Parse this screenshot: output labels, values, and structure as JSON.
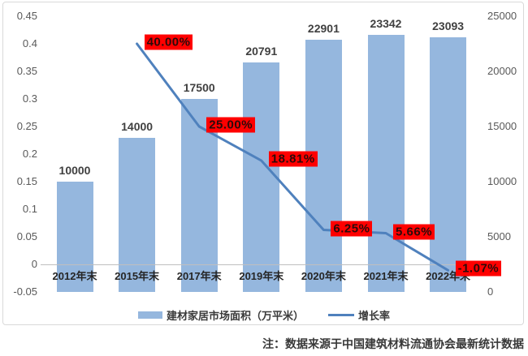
{
  "note": "注：数据来源于中国建筑材料流通协会最新统计数据",
  "chart_data": {
    "type": "combo",
    "title": "",
    "categories": [
      "2012年末",
      "2015年末",
      "2017年末",
      "2019年末",
      "2020年末",
      "2021年末",
      "2022年末"
    ],
    "series": [
      {
        "name": "建材家居市场面积（万平米）",
        "type": "bar",
        "axis": "right",
        "color": "#95B7DE",
        "values": [
          10000,
          14000,
          17500,
          20791,
          22901,
          23342,
          23093
        ],
        "data_labels": [
          "10000",
          "14000",
          "17500",
          "20791",
          "22901",
          "23342",
          "23093"
        ]
      },
      {
        "name": "增长率",
        "type": "line",
        "axis": "left",
        "color": "#4F81BD",
        "values": [
          null,
          0.4,
          0.25,
          0.1881,
          0.0625,
          0.0566,
          -0.0107
        ],
        "data_labels": [
          "",
          "40.00%",
          "25.00%",
          "18.81%",
          "6.25%",
          "5.66%",
          "-1.07%"
        ],
        "label_style": {
          "bg": "#FF0000",
          "text": "#2B0A0A"
        }
      }
    ],
    "left_axis": {
      "min": -0.05,
      "max": 0.45,
      "step": 0.05,
      "tick_labels": [
        "0.45",
        "0.4",
        "0.35",
        "0.3",
        "0.25",
        "0.2",
        "0.15",
        "0.1",
        "0.05",
        "0",
        "-0.05"
      ]
    },
    "right_axis": {
      "min": 0,
      "max": 25000,
      "step": 5000,
      "tick_labels": [
        "25000",
        "20000",
        "15000",
        "10000",
        "5000",
        "0"
      ]
    },
    "legend": {
      "position": "bottom",
      "entries": [
        {
          "label": "建材家居市场面积（万平米）",
          "swatch": "bar"
        },
        {
          "label": "增长率",
          "swatch": "line"
        }
      ]
    },
    "grid": false
  }
}
